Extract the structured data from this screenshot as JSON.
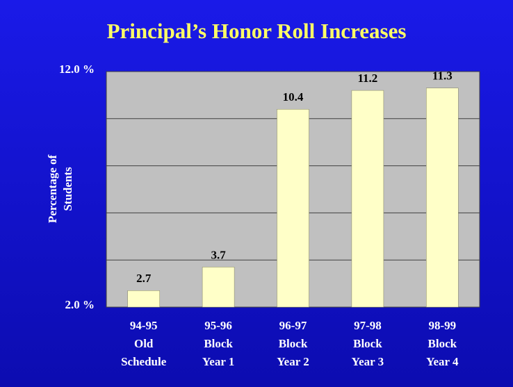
{
  "chart_data": {
    "type": "bar",
    "title": "Principal’s Honor Roll Increases",
    "ylabel": [
      "Percentage of",
      "Students"
    ],
    "categories": [
      [
        "94-95",
        "Old",
        "Schedule"
      ],
      [
        "95-96",
        "Block",
        "Year 1"
      ],
      [
        "96-97",
        "Block",
        "Year 2"
      ],
      [
        "97-98",
        "Block",
        "Year 3"
      ],
      [
        "98-99",
        "Block",
        "Year 4"
      ]
    ],
    "values": [
      2.7,
      3.7,
      10.4,
      11.2,
      11.3
    ],
    "color": "#ffffc8",
    "ylim": [
      2,
      12
    ],
    "yticks": [
      {
        "value": 2,
        "label": "2.0 %"
      },
      {
        "value": 4,
        "label": null
      },
      {
        "value": 6,
        "label": null
      },
      {
        "value": 8,
        "label": null
      },
      {
        "value": 10,
        "label": null
      },
      {
        "value": 12,
        "label": "12.0 %"
      }
    ],
    "grid": true
  }
}
